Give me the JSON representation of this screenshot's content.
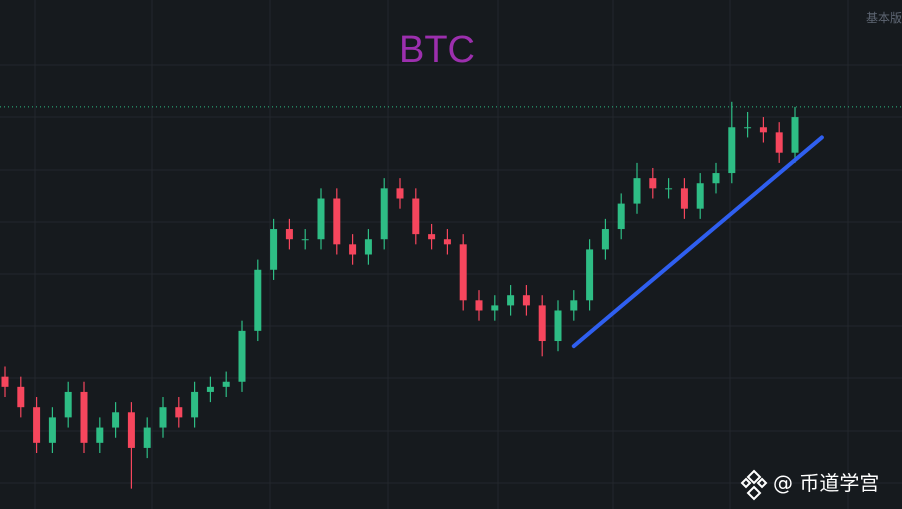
{
  "chart_data": {
    "type": "candlestick",
    "title": "BTC",
    "title_color": "#9c2fae",
    "header_text": "基本版",
    "watermark": "@ 币道学宫",
    "up_color": "#2ebd85",
    "down_color": "#f6465d",
    "ylim": [
      0,
      100
    ],
    "open": [
      26,
      24,
      20,
      13,
      18,
      23,
      13,
      16,
      19,
      12,
      16,
      20,
      18,
      23,
      24,
      25,
      35,
      47,
      55,
      53,
      53,
      61,
      52,
      50,
      53,
      63,
      61,
      54,
      53,
      52,
      41,
      39,
      40,
      42,
      40,
      33,
      39,
      41,
      51,
      55,
      60,
      65,
      63,
      63,
      59,
      64,
      66,
      75,
      75,
      74,
      70
    ],
    "high": [
      28,
      26,
      22,
      20,
      25,
      25,
      18,
      21,
      21,
      18,
      22,
      22,
      25,
      26,
      27,
      37,
      49,
      57,
      57,
      55,
      63,
      63,
      54,
      55,
      65,
      65,
      63,
      56,
      55,
      54,
      43,
      42,
      44,
      44,
      42,
      41,
      43,
      53,
      57,
      62,
      68,
      67,
      65,
      65,
      66,
      68,
      80,
      78,
      77,
      76,
      79
    ],
    "low": [
      22,
      18,
      11,
      11,
      16,
      11,
      11,
      14,
      4,
      10,
      14,
      16,
      16,
      21,
      22,
      23,
      33,
      45,
      51,
      51,
      51,
      50,
      48,
      48,
      51,
      59,
      52,
      51,
      50,
      39,
      37,
      37,
      38,
      38,
      30,
      31,
      37,
      39,
      49,
      53,
      58,
      61,
      61,
      57,
      57,
      62,
      64,
      73,
      72,
      68,
      68
    ],
    "close": [
      24,
      20,
      13,
      18,
      23,
      13,
      16,
      19,
      12,
      16,
      20,
      18,
      23,
      24,
      25,
      35,
      47,
      55,
      53,
      53,
      61,
      52,
      50,
      53,
      63,
      61,
      54,
      53,
      52,
      41,
      39,
      40,
      42,
      40,
      33,
      39,
      41,
      51,
      55,
      60,
      65,
      63,
      63,
      59,
      64,
      66,
      75,
      75,
      74,
      70,
      77
    ],
    "price_line": 79,
    "price_line_color": "#2ebd85",
    "trendline": {
      "x": [
        36,
        51.7
      ],
      "y": [
        32,
        73
      ],
      "color": "#2f5ff0"
    }
  }
}
